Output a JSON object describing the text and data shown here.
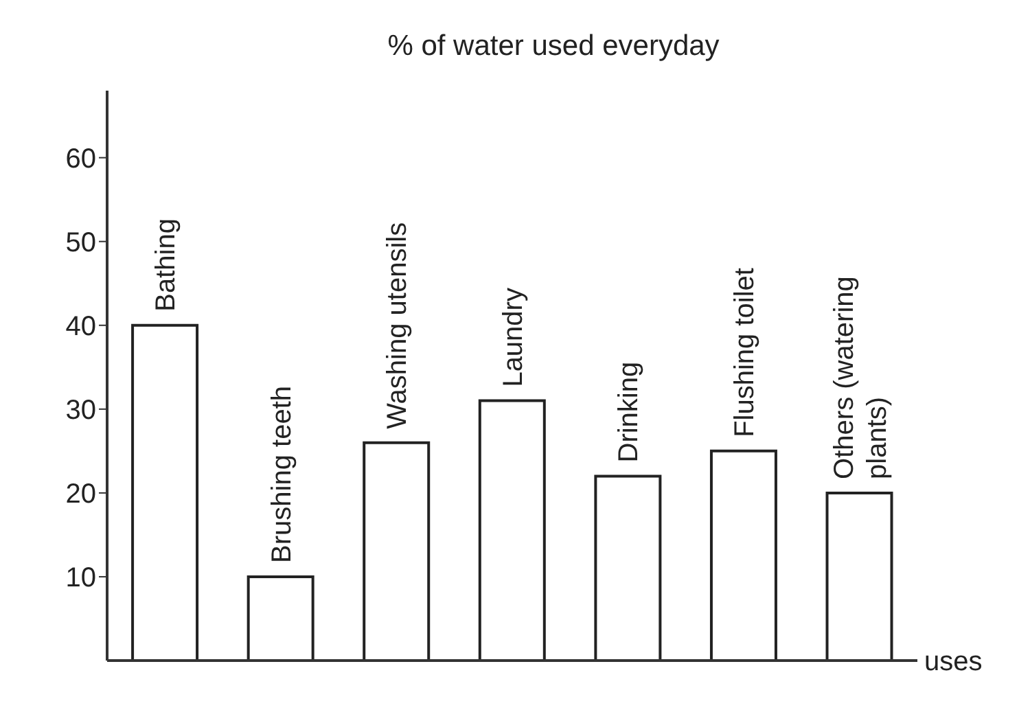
{
  "chart_data": {
    "type": "bar",
    "title": "% of water used everyday",
    "xlabel": "uses",
    "categories": [
      "Bathing",
      "Brushing teeth",
      "Washing utensils",
      "Laundry",
      "Drinking",
      "Flushing toilet",
      "Others (watering plants)"
    ],
    "values": [
      40,
      10,
      26,
      31,
      22,
      25,
      20
    ],
    "color": "#ffffff",
    "ylim": [
      0,
      68
    ],
    "yticks": [
      10,
      20,
      30,
      40,
      50,
      60
    ],
    "grid": false,
    "tick_labels": "y"
  }
}
